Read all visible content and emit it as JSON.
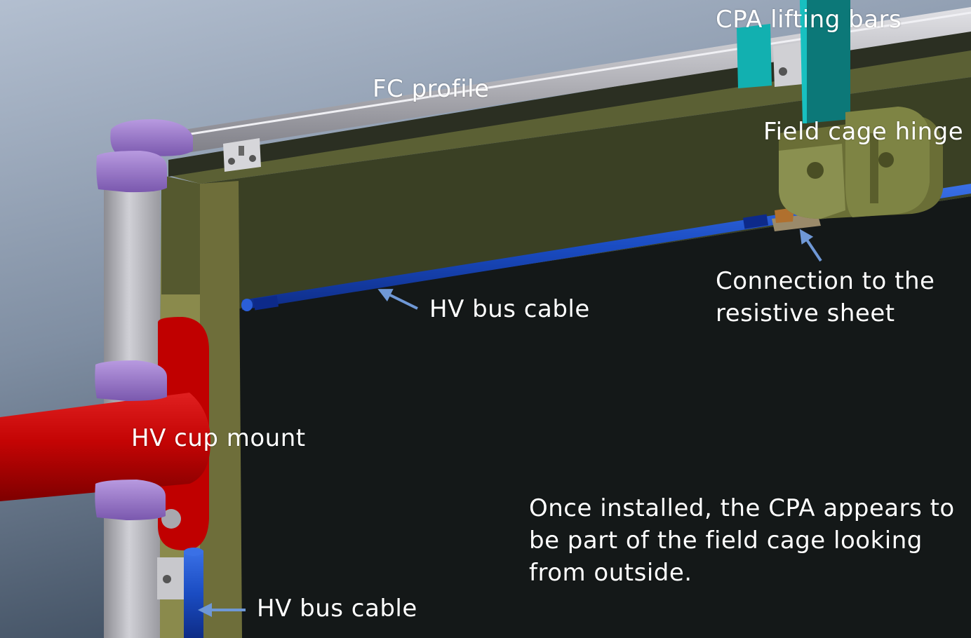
{
  "labels": {
    "cpa_lifting_bars": "CPA lifting bars",
    "fc_profile": "FC profile",
    "field_cage_hinge": "Field cage hinge",
    "connection_line1": "Connection to the",
    "connection_line2": "resistive sheet",
    "hv_bus_cable_top": "HV bus cable",
    "hv_cup_mount": "HV cup mount",
    "hv_bus_cable_bottom": "HV bus cable"
  },
  "note": {
    "line1": "Once installed, the CPA appears to",
    "line2": "be part of the field cage looking",
    "line3": "from outside."
  },
  "colors": {
    "background_top": "#a9b6c8",
    "background_bottom": "#3f4e60",
    "cpa_panel": "#141818",
    "frame_olive": "#3c4226",
    "frame_khaki": "#8c8a4e",
    "fc_profile": "#b4b4b8",
    "clip_purple": "#9a78c8",
    "hv_cup_red": "#c80606",
    "hv_bus_blue": "#1848c0",
    "lifting_bar_teal": "#10a8a8",
    "hinge_olive": "#6e7238",
    "arrow_blue": "#6f98d6"
  }
}
